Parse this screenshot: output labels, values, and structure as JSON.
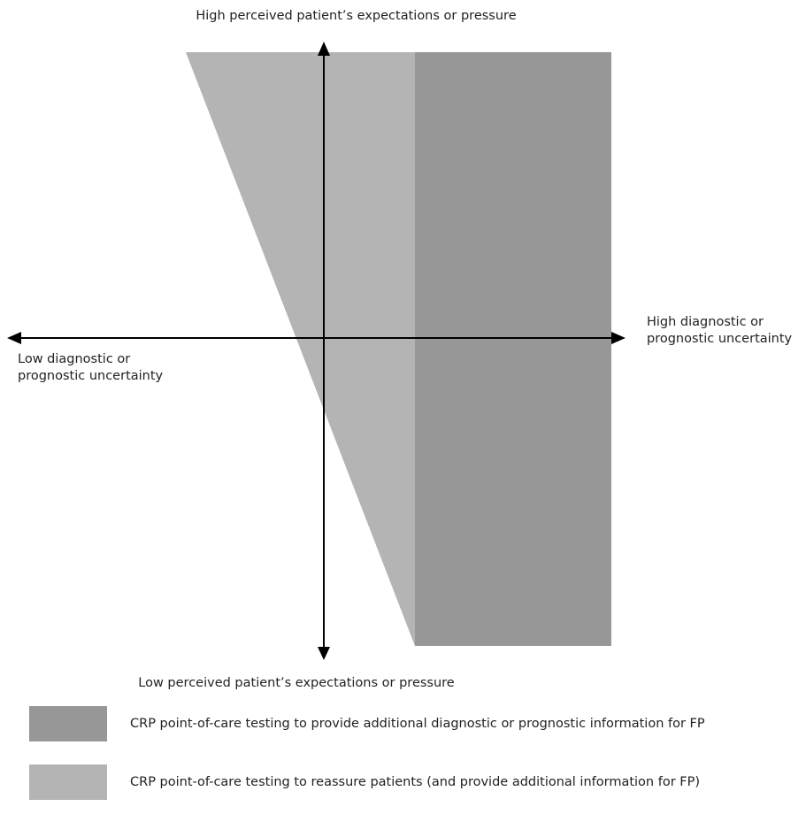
{
  "colors": {
    "dark_zone": "#979797",
    "light_zone": "#b4b4b4",
    "axis": "#000000",
    "text": "#222222",
    "background": "#ffffff"
  },
  "axes": {
    "top": "High perceived patient’s expectations or pressure",
    "bottom": "Low perceived patient’s expectations or pressure",
    "left": "Low diagnostic or\nprognostic uncertainty",
    "right": "High diagnostic or\nprognostic uncertainty"
  },
  "legend": [
    {
      "swatch": "dark_zone",
      "text": "CRP point-of-care testing to provide additional diagnostic or prognostic information for FP"
    },
    {
      "swatch": "light_zone",
      "text": "CRP point-of-care testing to reassure patients (and provide additional information for FP)"
    }
  ]
}
